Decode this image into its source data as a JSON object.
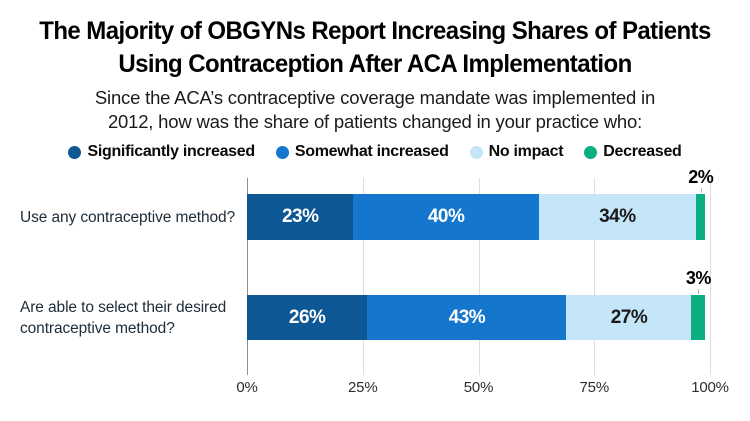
{
  "header": {
    "title_line1": "The Majority of OBGYNs Report Increasing Shares of Patients",
    "title_line2": "Using Contraception After ACA Implementation",
    "subtitle_line1": "Since the ACA’s contraceptive coverage mandate was implemented in",
    "subtitle_line2": "2012, how was the share of patients changed in your practice who:"
  },
  "colors": {
    "significantly_increased": "#0d5794",
    "somewhat_increased": "#1477cd",
    "no_impact": "#c5e5f8",
    "decreased": "#0caf82",
    "inside_label_on_dark": "#ffffff",
    "inside_label_on_light": "#1a1a1a",
    "gridline": "#dddddd",
    "axis_line": "#8f8f8f"
  },
  "chart_data": {
    "type": "bar",
    "orientation": "horizontal",
    "stacked": true,
    "title": "The Majority of OBGYNs Report Increasing Shares of Patients Using Contraception After ACA Implementation",
    "subtitle": "Since the ACA’s contraceptive coverage mandate was implemented in 2012, how was the share of patients changed in your practice who:",
    "categories": [
      "Use any contraceptive method?",
      "Are able to select their desired contraceptive method?"
    ],
    "series": [
      {
        "name": "Significantly increased",
        "color": "#0d5794",
        "values": [
          23,
          26
        ]
      },
      {
        "name": "Somewhat increased",
        "color": "#1477cd",
        "values": [
          40,
          43
        ]
      },
      {
        "name": "No impact",
        "color": "#c5e5f8",
        "values": [
          34,
          27
        ]
      },
      {
        "name": "Decreased",
        "color": "#0caf82",
        "values": [
          2,
          3
        ]
      }
    ],
    "value_suffix": "%",
    "x_ticks": [
      "0%",
      "25%",
      "50%",
      "75%",
      "100%"
    ],
    "xlim": [
      0,
      100
    ],
    "grid": true,
    "legend_position": "top"
  }
}
